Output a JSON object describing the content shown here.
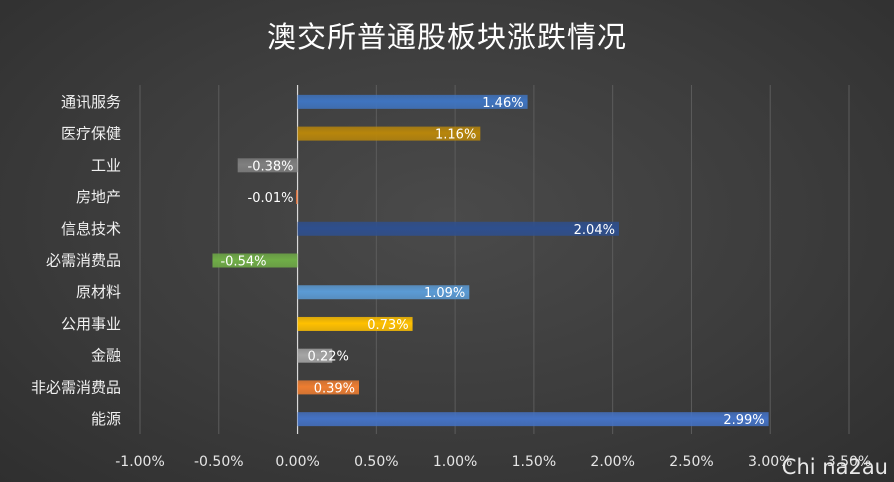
{
  "chart_data": {
    "type": "bar",
    "orientation": "horizontal",
    "title": "澳交所普通股板块涨跌情况",
    "categories": [
      "通讯服务",
      "医疗保健",
      "工业",
      "房地产",
      "信息技术",
      "必需消费品",
      "原材料",
      "公用事业",
      "金融",
      "非必需消费品",
      "能源"
    ],
    "values": [
      1.46,
      1.16,
      -0.38,
      -0.01,
      2.04,
      -0.54,
      1.09,
      0.73,
      0.22,
      0.39,
      2.99
    ],
    "value_labels": [
      "1.46%",
      "1.16%",
      "-0.38%",
      "-0.01%",
      "2.04%",
      "-0.54%",
      "1.09%",
      "0.73%",
      "0.22%",
      "0.39%",
      "2.99%"
    ],
    "colors": [
      "#3f74c0",
      "#b8860b",
      "#7f7f7f",
      "#e8743b",
      "#2e4f8e",
      "#70ad47",
      "#5b9bd5",
      "#ffc000",
      "#a5a5a5",
      "#ed7d31",
      "#4472c4"
    ],
    "xlim": [
      -1.0,
      3.5
    ],
    "xticks": [
      -1.0,
      -0.5,
      0.0,
      0.5,
      1.0,
      1.5,
      2.0,
      2.5,
      3.0,
      3.5
    ],
    "xtick_labels": [
      "-1.00%",
      "-0.50%",
      "0.00%",
      "0.50%",
      "1.00%",
      "1.50%",
      "2.00%",
      "2.50%",
      "3.00%",
      "3.50%"
    ],
    "grid": true,
    "xlabel": "",
    "ylabel": ""
  },
  "watermark": "Chi na2au"
}
